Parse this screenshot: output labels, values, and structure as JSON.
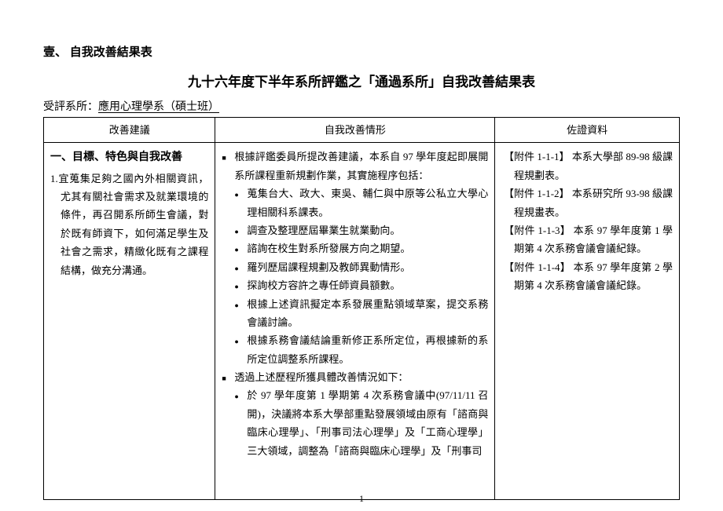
{
  "section_heading": "壹、 自我改善結果表",
  "title": "九十六年度下半年系所評鑑之「通過系所」自我改善結果表",
  "subtitle_prefix": "受評系所：",
  "subtitle_dept": "應用心理學系（碩士班）",
  "headers": {
    "col1": "改善建議",
    "col2": "自我改善情形",
    "col3": "佐證資料"
  },
  "col1": {
    "heading": "一、目標、特色與自我改善",
    "para": "1.宜蒐集足夠之國內外相關資訊，尤其有關社會需求及就業環境的條件，再召開系所師生會議，對於既有師資下，如何滿足學生及社會之需求，精緻化既有之課程結構，做充分溝通。"
  },
  "col2": {
    "bullets": [
      {
        "text": "根據評鑑委員所提改善建議，本系自 97 學年度起即展開系所課程重新規劃作業，其實施程序包括：",
        "subs": [
          "蒐集台大、政大、東吳、輔仁與中原等公私立大學心理相關科系課表。",
          "調查及整理歷屆畢業生就業動向。",
          "諮詢在校生對系所發展方向之期望。",
          "羅列歷屆課程規劃及教師異動情形。",
          "探詢校方容許之專任師資員額數。",
          "根據上述資訊擬定本系發展重點領域草案，提交系務會議討論。",
          "根據系務會議結論重新修正系所定位，再根據新的系所定位調整系所課程。"
        ]
      },
      {
        "text": "透過上述歷程所獲具體改善情況如下：",
        "subs": [
          "於 97 學年度第 1 學期第 4 次系務會議中(97/11/11 召開)，決議將本系大學部重點發展領域由原有「諮商與臨床心理學」、「刑事司法心理學」及「工商心理學」三大領域，調整為「諮商與臨床心理學」及「刑事司"
        ]
      }
    ]
  },
  "col3": {
    "items": [
      "【附件 1-1-1】 本系大學部 89-98 級課程規劃表。",
      "【附件 1-1-2】 本系研究所 93-98 級課程規畫表。",
      "【附件 1-1-3】 本系 97 學年度第 1 學期第 4 次系務會議會議紀錄。",
      "【附件 1-1-4】 本系 97 學年度第 2 學期第 4 次系務會議會議紀錄。"
    ]
  },
  "page_number": "1"
}
